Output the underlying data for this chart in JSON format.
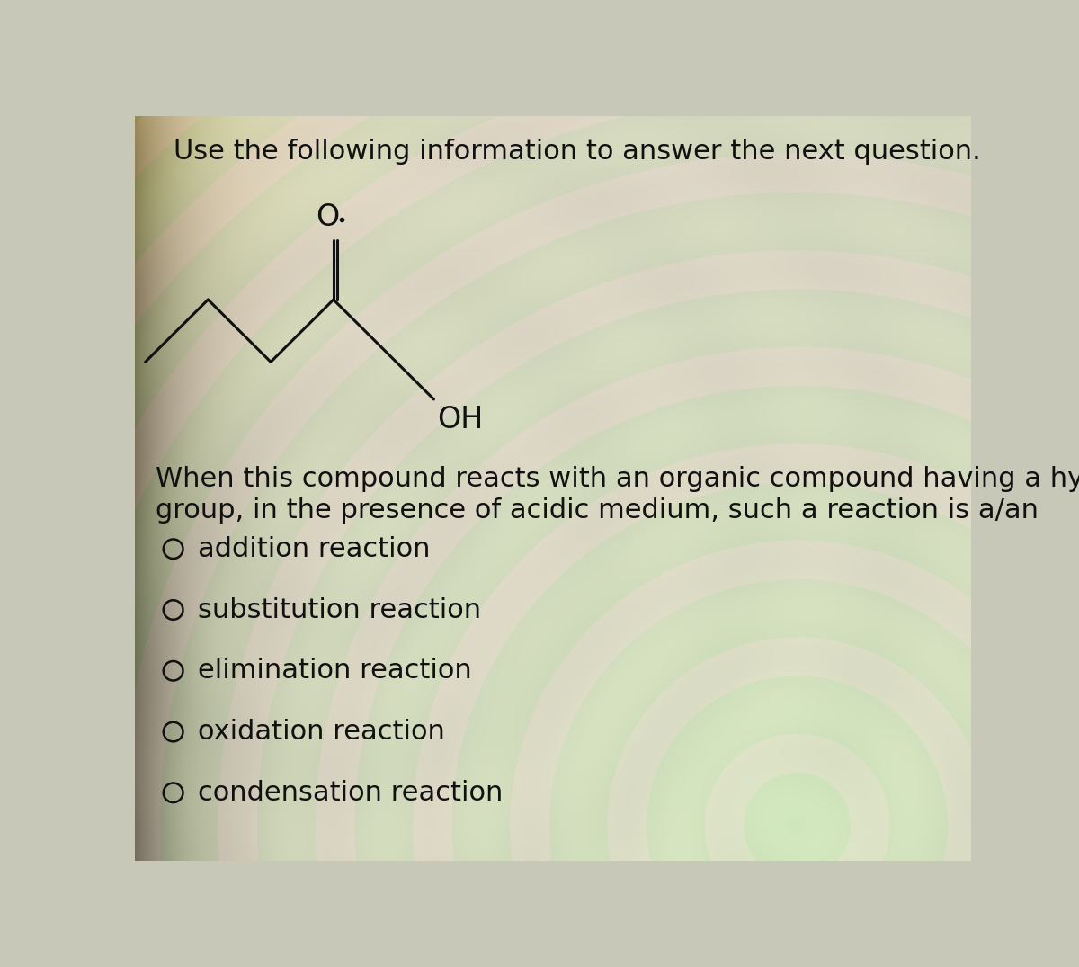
{
  "header": "Use the following information to answer the next question.",
  "question_line1": "When this compound reacts with an organic compound having a hydroxyl",
  "question_line2": "group, in the presence of acidic medium, such a reaction is a/an",
  "options": [
    "addition reaction",
    "substitution reaction",
    "elimination reaction",
    "oxidation reaction",
    "condensation reaction"
  ],
  "text_color": "#111111",
  "header_fontsize": 22,
  "question_fontsize": 22,
  "option_fontsize": 22,
  "compound_label_O": "O",
  "compound_label_OH": "OH",
  "bg_base": "#c8c8b8",
  "bg_light": "#d8d8c0",
  "ripple_colors": [
    "#c0c8b0",
    "#d0d8b8",
    "#c8c0b8",
    "#d8d0c8",
    "#c0c8c0"
  ]
}
